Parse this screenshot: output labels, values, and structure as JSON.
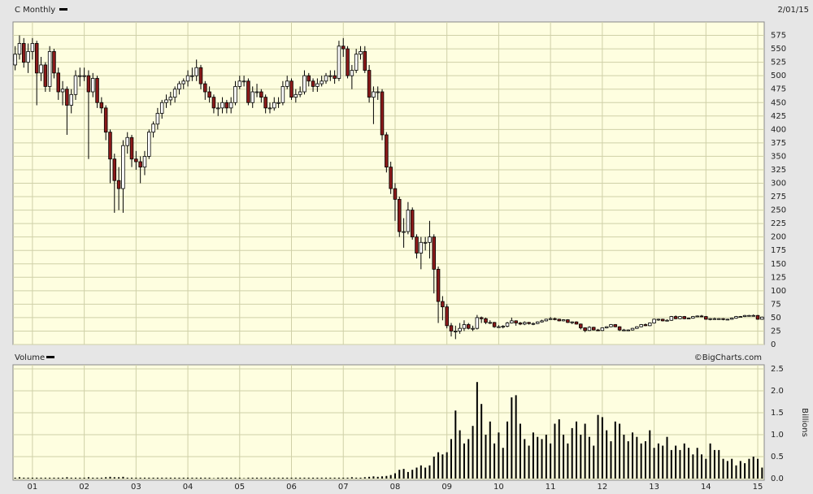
{
  "chart_data": [
    {
      "type": "candlestick",
      "title": "C Monthly",
      "date": "2/01/15",
      "up_color": "#ffffff",
      "down_color": "#8b1a1a",
      "outline_color": "#000000",
      "open": [
        520,
        540,
        560,
        525,
        545,
        560,
        505,
        520,
        480,
        545,
        505,
        470,
        475,
        445,
        465,
        500,
        500,
        500,
        470,
        495,
        450,
        440,
        395,
        345,
        305,
        290,
        370,
        385,
        345,
        340,
        330,
        350,
        395,
        410,
        430,
        450,
        455,
        460,
        475,
        485,
        490,
        500,
        500,
        515,
        485,
        470,
        460,
        440,
        440,
        450,
        440,
        450,
        480,
        490,
        490,
        450,
        470,
        470,
        460,
        440,
        440,
        450,
        450,
        480,
        490,
        460,
        465,
        470,
        500,
        490,
        480,
        485,
        490,
        500,
        500,
        495,
        555,
        550,
        500,
        510,
        540,
        545,
        510,
        460,
        470,
        470,
        390,
        330,
        290,
        270,
        210,
        210,
        250,
        200,
        170,
        190,
        190,
        200,
        140,
        80,
        70,
        35,
        25,
        25,
        30,
        37,
        30,
        30,
        50,
        48,
        41,
        41,
        33,
        33,
        34,
        40,
        44,
        40,
        38,
        41,
        39,
        39,
        42,
        44,
        47,
        48,
        47,
        44,
        46,
        41,
        42,
        38,
        31,
        26,
        32,
        27,
        26,
        31,
        33,
        37,
        33,
        27,
        27,
        27,
        30,
        33,
        37,
        35,
        40,
        47,
        47,
        44,
        45,
        52,
        48,
        52,
        48,
        49,
        52,
        53,
        52,
        47,
        48,
        48,
        48,
        47,
        47,
        49,
        52,
        52,
        54,
        54,
        54,
        47
      ],
      "high": [
        555,
        575,
        570,
        560,
        570,
        565,
        535,
        525,
        555,
        550,
        515,
        490,
        480,
        475,
        510,
        515,
        515,
        510,
        505,
        500,
        460,
        445,
        400,
        355,
        330,
        380,
        395,
        390,
        360,
        350,
        360,
        400,
        415,
        440,
        455,
        465,
        470,
        480,
        490,
        495,
        510,
        515,
        530,
        520,
        490,
        480,
        465,
        450,
        460,
        455,
        460,
        490,
        500,
        500,
        495,
        480,
        485,
        475,
        465,
        450,
        460,
        460,
        490,
        500,
        495,
        475,
        480,
        510,
        505,
        495,
        495,
        500,
        505,
        510,
        510,
        565,
        570,
        555,
        520,
        550,
        555,
        555,
        520,
        480,
        480,
        475,
        395,
        340,
        300,
        275,
        235,
        265,
        255,
        205,
        200,
        200,
        230,
        205,
        145,
        90,
        75,
        40,
        35,
        40,
        45,
        40,
        35,
        55,
        52,
        50,
        45,
        42,
        36,
        36,
        42,
        50,
        45,
        42,
        43,
        42,
        41,
        43,
        46,
        48,
        51,
        50,
        48,
        47,
        47,
        43,
        43,
        39,
        32,
        34,
        33,
        29,
        32,
        34,
        38,
        38,
        34,
        29,
        28,
        31,
        34,
        38,
        39,
        41,
        48,
        48,
        48,
        47,
        53,
        54,
        53,
        53,
        50,
        53,
        54,
        55,
        53,
        49,
        50,
        49,
        49,
        48,
        50,
        53,
        53,
        55,
        55,
        56,
        55,
        52
      ],
      "low": [
        510,
        530,
        515,
        505,
        530,
        445,
        490,
        470,
        470,
        495,
        455,
        445,
        390,
        430,
        455,
        480,
        490,
        345,
        460,
        440,
        430,
        380,
        300,
        245,
        250,
        245,
        355,
        330,
        325,
        300,
        315,
        345,
        385,
        400,
        420,
        440,
        445,
        450,
        465,
        475,
        480,
        490,
        490,
        475,
        455,
        450,
        430,
        425,
        430,
        430,
        430,
        445,
        475,
        480,
        445,
        440,
        460,
        450,
        430,
        430,
        435,
        440,
        445,
        475,
        455,
        450,
        460,
        465,
        480,
        470,
        470,
        480,
        485,
        490,
        485,
        490,
        535,
        495,
        475,
        505,
        530,
        505,
        450,
        410,
        455,
        380,
        320,
        280,
        230,
        200,
        180,
        205,
        195,
        160,
        140,
        175,
        160,
        95,
        40,
        45,
        30,
        15,
        10,
        20,
        25,
        28,
        25,
        28,
        40,
        38,
        38,
        31,
        31,
        30,
        32,
        39,
        35,
        36,
        36,
        37,
        36,
        38,
        41,
        43,
        46,
        45,
        43,
        43,
        40,
        38,
        37,
        28,
        23,
        25,
        26,
        25,
        25,
        30,
        32,
        32,
        25,
        25,
        25,
        26,
        29,
        32,
        34,
        34,
        39,
        44,
        43,
        43,
        44,
        47,
        47,
        47,
        47,
        48,
        51,
        51,
        46,
        45,
        46,
        46,
        45,
        46,
        46,
        48,
        50,
        51,
        53,
        52,
        46,
        46
      ],
      "close": [
        540,
        560,
        525,
        545,
        560,
        505,
        520,
        480,
        545,
        505,
        470,
        475,
        445,
        465,
        500,
        500,
        500,
        470,
        495,
        450,
        440,
        395,
        345,
        305,
        290,
        370,
        385,
        345,
        340,
        330,
        350,
        395,
        410,
        430,
        450,
        455,
        460,
        475,
        485,
        490,
        500,
        500,
        515,
        485,
        470,
        460,
        440,
        440,
        450,
        440,
        450,
        480,
        490,
        490,
        450,
        470,
        470,
        460,
        440,
        440,
        450,
        450,
        480,
        490,
        460,
        465,
        470,
        500,
        490,
        480,
        485,
        490,
        500,
        500,
        495,
        555,
        550,
        500,
        510,
        540,
        545,
        510,
        460,
        470,
        470,
        390,
        330,
        290,
        270,
        210,
        210,
        250,
        200,
        170,
        190,
        190,
        200,
        140,
        80,
        70,
        35,
        25,
        25,
        30,
        37,
        30,
        30,
        50,
        48,
        41,
        41,
        33,
        33,
        34,
        40,
        44,
        40,
        38,
        41,
        39,
        39,
        42,
        44,
        47,
        48,
        47,
        44,
        46,
        41,
        42,
        38,
        31,
        26,
        32,
        27,
        26,
        31,
        33,
        37,
        33,
        27,
        27,
        27,
        30,
        33,
        37,
        35,
        40,
        47,
        47,
        44,
        45,
        52,
        48,
        52,
        48,
        49,
        52,
        53,
        52,
        47,
        48,
        48,
        48,
        47,
        47,
        49,
        52,
        52,
        54,
        54,
        54,
        47,
        51
      ],
      "ylim": [
        0,
        600
      ],
      "yticks": [
        0,
        25,
        50,
        75,
        100,
        125,
        150,
        175,
        200,
        225,
        250,
        275,
        300,
        325,
        350,
        375,
        400,
        425,
        450,
        475,
        500,
        525,
        550,
        575
      ],
      "grid": true
    },
    {
      "type": "bar",
      "title": "Volume",
      "source": "©BigCharts.com",
      "ylabel": "Billions",
      "color": "#000000",
      "categories": [
        null,
        null,
        null,
        null,
        "01",
        null,
        null,
        null,
        null,
        null,
        null,
        null,
        null,
        null,
        null,
        null,
        "02",
        null,
        null,
        null,
        null,
        null,
        null,
        null,
        null,
        null,
        null,
        null,
        "03",
        null,
        null,
        null,
        null,
        null,
        null,
        null,
        null,
        null,
        null,
        null,
        "04",
        null,
        null,
        null,
        null,
        null,
        null,
        null,
        null,
        null,
        null,
        null,
        "05",
        null,
        null,
        null,
        null,
        null,
        null,
        null,
        null,
        null,
        null,
        null,
        "06",
        null,
        null,
        null,
        null,
        null,
        null,
        null,
        null,
        null,
        null,
        null,
        "07",
        null,
        null,
        null,
        null,
        null,
        null,
        null,
        null,
        null,
        null,
        null,
        "08",
        null,
        null,
        null,
        null,
        null,
        null,
        null,
        null,
        null,
        null,
        null,
        "09",
        null,
        null,
        null,
        null,
        null,
        null,
        null,
        null,
        null,
        null,
        null,
        "10",
        null,
        null,
        null,
        null,
        null,
        null,
        null,
        null,
        null,
        null,
        null,
        "11",
        null,
        null,
        null,
        null,
        null,
        null,
        null,
        null,
        null,
        null,
        null,
        "12",
        null,
        null,
        null,
        null,
        null,
        null,
        null,
        null,
        null,
        null,
        null,
        "13",
        null,
        null,
        null,
        null,
        null,
        null,
        null,
        null,
        null,
        null,
        null,
        "14",
        null,
        null,
        null,
        null,
        null,
        null,
        null,
        null,
        null,
        null,
        null,
        "15",
        null
      ],
      "values": [
        0.02,
        0.03,
        0.02,
        0.02,
        0.02,
        0.02,
        0.02,
        0.02,
        0.02,
        0.02,
        0.02,
        0.02,
        0.03,
        0.02,
        0.02,
        0.02,
        0.02,
        0.03,
        0.02,
        0.02,
        0.02,
        0.03,
        0.04,
        0.03,
        0.03,
        0.04,
        0.02,
        0.02,
        0.02,
        0.02,
        0.02,
        0.02,
        0.02,
        0.02,
        0.02,
        0.02,
        0.02,
        0.02,
        0.02,
        0.02,
        0.02,
        0.02,
        0.02,
        0.02,
        0.02,
        0.02,
        0.01,
        0.02,
        0.02,
        0.02,
        0.02,
        0.02,
        0.02,
        0.01,
        0.02,
        0.02,
        0.02,
        0.02,
        0.02,
        0.02,
        0.02,
        0.02,
        0.02,
        0.02,
        0.02,
        0.02,
        0.02,
        0.02,
        0.02,
        0.02,
        0.02,
        0.02,
        0.02,
        0.02,
        0.02,
        0.02,
        0.02,
        0.02,
        0.03,
        0.02,
        0.02,
        0.03,
        0.04,
        0.05,
        0.04,
        0.05,
        0.06,
        0.08,
        0.12,
        0.2,
        0.22,
        0.15,
        0.2,
        0.25,
        0.3,
        0.25,
        0.3,
        0.5,
        0.6,
        0.55,
        0.6,
        0.9,
        1.55,
        1.1,
        0.8,
        0.9,
        1.2,
        2.2,
        1.7,
        1.0,
        1.3,
        0.8,
        1.05,
        0.7,
        1.3,
        1.85,
        1.9,
        1.25,
        0.9,
        0.75,
        1.05,
        0.95,
        0.9,
        1.0,
        0.8,
        1.25,
        1.35,
        1.0,
        0.8,
        1.15,
        1.3,
        1.0,
        1.25,
        0.95,
        0.75,
        1.45,
        1.4,
        1.1,
        0.85,
        1.3,
        1.25,
        1.0,
        0.85,
        1.05,
        0.95,
        0.8,
        0.85,
        1.1,
        0.7,
        0.8,
        0.75,
        0.95,
        0.65,
        0.75,
        0.65,
        0.8,
        0.7,
        0.55,
        0.7,
        0.55,
        0.45,
        0.8,
        0.65,
        0.65,
        0.45,
        0.4,
        0.45,
        0.3,
        0.4,
        0.35,
        0.45,
        0.5,
        0.45,
        0.25
      ],
      "ylim": [
        0,
        2.5
      ],
      "yticks": [
        {
          "value": 0,
          "label": "0.0"
        },
        0.5,
        {
          "value": 1,
          "label": "1.0"
        },
        1.5,
        {
          "value": 2,
          "label": "2.0"
        },
        2.5
      ],
      "grid": true
    }
  ]
}
